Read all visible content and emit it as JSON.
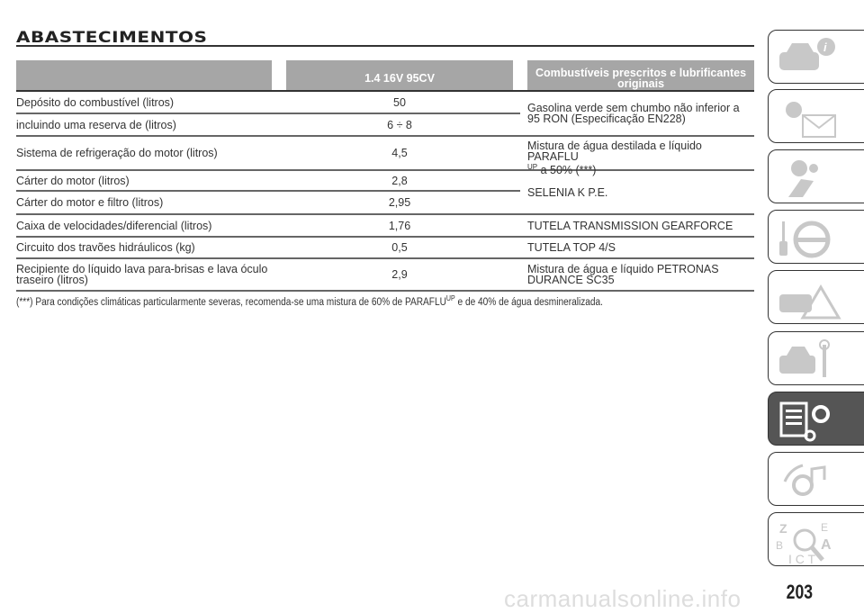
{
  "title": "ABASTECIMENTOS",
  "table": {
    "headers": [
      "",
      "1.4 16V 95CV",
      "Combustíveis prescritos e lubrificantes originais"
    ],
    "rows": [
      {
        "label": "Depósito do combustível (litros)",
        "value": "50"
      },
      {
        "label": "incluindo uma reserva de (litros)",
        "value": "6 ÷ 8"
      },
      {
        "label": "Sistema de refrigeração do motor (litros)",
        "value": "4,5"
      },
      {
        "label": "Cárter do motor (litros)",
        "value": "2,8"
      },
      {
        "label": "Cárter do motor e filtro (litros)",
        "value": "2,95"
      },
      {
        "label": "Caixa de velocidades/diferencial (litros)",
        "value": "1,76"
      },
      {
        "label": "Circuito dos travões hidráulicos (kg)",
        "value": "0,5"
      },
      {
        "label": "Recipiente do líquido lava para-brisas e lava óculo traseiro (litros)",
        "value": "2,9"
      }
    ],
    "products": {
      "fuel": "Gasolina verde sem chumbo não inferior a 95 RON (Especificação EN228)",
      "coolant_a": "Mistura de água destilada e líquido PARAFLU",
      "coolant_sup": "UP",
      "coolant_b": " a 50% (***)",
      "engine_oil": "SELENIA K P.E.",
      "gearbox": "TUTELA TRANSMISSION GEARFORCE",
      "brakes": "TUTELA TOP 4/S",
      "washer": "Mistura de água e líquido PETRONAS DURANCE SC35"
    }
  },
  "footnote": {
    "a": "(***) Para condições climáticas particularmente severas, recomenda-se uma mistura de 60% de PARAFLU",
    "sup": "UP",
    "b": " e de 40% de água desmineralizada."
  },
  "sidebar": {
    "tabs": [
      "car-info-icon",
      "warning-lights-icon",
      "safety-seat-icon",
      "key-steering-icon",
      "emergency-icon",
      "car-maintenance-icon",
      "technical-data-icon",
      "multimedia-icon",
      "index-icon"
    ],
    "active_index": 6
  },
  "page_number": "203",
  "watermark": "carmanualsonline.info"
}
